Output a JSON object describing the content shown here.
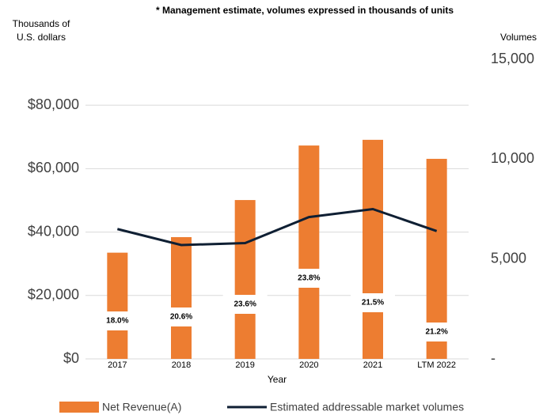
{
  "chart_data": {
    "type": "bar_line",
    "subtitle": "* Management estimate, volumes expressed in thousands of units",
    "y_label_lines": [
      "Thousands of",
      "U.S. dollars"
    ],
    "y2_label": "Volumes",
    "x_label": "Year",
    "categories": [
      "2017",
      "2018",
      "2019",
      "2020",
      "2021",
      "LTM 2022"
    ],
    "series": [
      {
        "name": "Net Revenue(A)",
        "color": "#ed7d31",
        "type": "bar",
        "values": [
          33500,
          38400,
          50100,
          67300,
          69100,
          63100
        ],
        "annotations": [
          "18.0%",
          "20.6%",
          "23.6%",
          "23.8%",
          "21.5%",
          "21.2%"
        ]
      },
      {
        "name": "Estimated addressable market volumes",
        "color": "#0f1f33",
        "type": "line",
        "axis": "y2",
        "values": [
          6500,
          5700,
          5800,
          7100,
          7500,
          6400
        ]
      }
    ],
    "ylim": [
      0,
      94500
    ],
    "yticks": [
      {
        "value": 0,
        "label": "$0"
      },
      {
        "value": 20000,
        "label": "$20,000"
      },
      {
        "value": 40000,
        "label": "$40,000"
      },
      {
        "value": 60000,
        "label": "$60,000"
      },
      {
        "value": 80000,
        "label": "$80,000"
      }
    ],
    "y2lim": [
      0,
      15000
    ],
    "y2ticks": [
      {
        "value": 0,
        "label": "-"
      },
      {
        "value": 5000,
        "label": "5,000"
      },
      {
        "value": 10000,
        "label": "10,000"
      },
      {
        "value": 15000,
        "label": "15,000"
      }
    ],
    "grid": true
  }
}
